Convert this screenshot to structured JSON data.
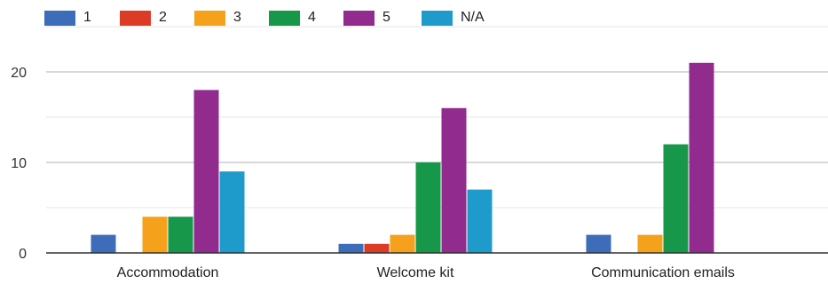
{
  "chart_data": {
    "type": "bar",
    "categories": [
      "Accommodation",
      "Welcome kit",
      "Communication emails"
    ],
    "series": [
      {
        "name": "1",
        "color": "#3d6cb9",
        "values": [
          2,
          1,
          2
        ]
      },
      {
        "name": "2",
        "color": "#dc3b25",
        "values": [
          0,
          1,
          0
        ]
      },
      {
        "name": "3",
        "color": "#f5a11c",
        "values": [
          4,
          2,
          2
        ]
      },
      {
        "name": "4",
        "color": "#17974a",
        "values": [
          4,
          10,
          12
        ]
      },
      {
        "name": "5",
        "color": "#922b8e",
        "values": [
          18,
          16,
          21
        ]
      },
      {
        "name": "N/A",
        "color": "#1e9bcb",
        "values": [
          9,
          7,
          0
        ]
      }
    ],
    "yticks": [
      0,
      10,
      20
    ],
    "ylim": [
      0,
      25
    ],
    "legend_position": "top-left",
    "grid": true
  }
}
